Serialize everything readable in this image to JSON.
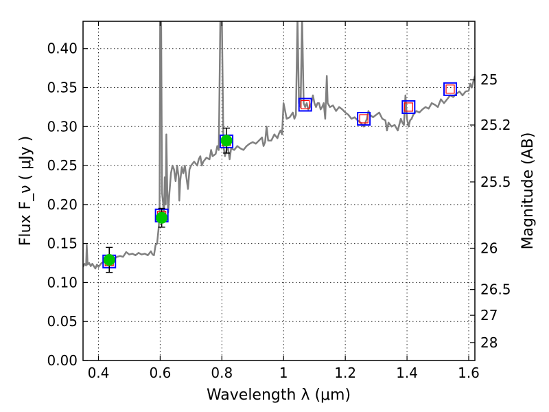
{
  "chart_data": {
    "type": "line",
    "title": "",
    "xlabel": "Wavelength  λ (μm)",
    "ylabel": "Flux  F_ν  ( μJy )",
    "ylabel_right": "Magnitude (AB)",
    "xlim": [
      0.35,
      1.62
    ],
    "ylim": [
      0.0,
      0.435
    ],
    "grid": true,
    "x_ticks": [
      0.4,
      0.6,
      0.8,
      1.0,
      1.2,
      1.4,
      1.6
    ],
    "x_tick_labels": [
      "0.4",
      "0.6",
      "0.8",
      "1",
      "1.2",
      "1.4",
      "1.6"
    ],
    "y_ticks": [
      0.0,
      0.05,
      0.1,
      0.15,
      0.2,
      0.25,
      0.3,
      0.35,
      0.4
    ],
    "y_tick_labels": [
      "0.00",
      "0.05",
      "0.10",
      "0.15",
      "0.20",
      "0.25",
      "0.30",
      "0.35",
      "0.40"
    ],
    "right_ticks": [
      {
        "label": "25",
        "flux": 0.36
      },
      {
        "label": "25.2",
        "flux": 0.302
      },
      {
        "label": "25.5",
        "flux": 0.229
      },
      {
        "label": "26",
        "flux": 0.144
      },
      {
        "label": "26.5",
        "flux": 0.091
      },
      {
        "label": "27",
        "flux": 0.058
      },
      {
        "label": "28",
        "flux": 0.023
      }
    ],
    "colors": {
      "spectrum": "#808080",
      "observed": "#00c800",
      "model_box": "#0000ff",
      "model_inner": "#ff0000",
      "errorbar": "#000000"
    },
    "series": [
      {
        "kind": "spectrum",
        "points": [
          [
            0.35,
            0.12
          ],
          [
            0.355,
            0.124
          ],
          [
            0.36,
            0.122
          ],
          [
            0.362,
            0.148
          ],
          [
            0.365,
            0.123
          ],
          [
            0.37,
            0.125
          ],
          [
            0.375,
            0.121
          ],
          [
            0.38,
            0.124
          ],
          [
            0.39,
            0.118
          ],
          [
            0.395,
            0.123
          ],
          [
            0.4,
            0.12
          ],
          [
            0.41,
            0.125
          ],
          [
            0.42,
            0.127
          ],
          [
            0.43,
            0.128
          ],
          [
            0.44,
            0.131
          ],
          [
            0.45,
            0.13
          ],
          [
            0.46,
            0.133
          ],
          [
            0.47,
            0.134
          ],
          [
            0.48,
            0.133
          ],
          [
            0.49,
            0.139
          ],
          [
            0.5,
            0.136
          ],
          [
            0.51,
            0.137
          ],
          [
            0.52,
            0.135
          ],
          [
            0.53,
            0.138
          ],
          [
            0.54,
            0.136
          ],
          [
            0.55,
            0.137
          ],
          [
            0.56,
            0.135
          ],
          [
            0.57,
            0.14
          ],
          [
            0.575,
            0.136
          ],
          [
            0.58,
            0.135
          ],
          [
            0.585,
            0.148
          ],
          [
            0.59,
            0.15
          ],
          [
            0.595,
            0.17
          ],
          [
            0.598,
            0.19
          ],
          [
            0.6,
            0.44
          ],
          [
            0.603,
            0.44
          ],
          [
            0.606,
            0.215
          ],
          [
            0.61,
            0.2
          ],
          [
            0.612,
            0.18
          ],
          [
            0.615,
            0.235
          ],
          [
            0.618,
            0.2
          ],
          [
            0.62,
            0.29
          ],
          [
            0.623,
            0.22
          ],
          [
            0.626,
            0.19
          ],
          [
            0.63,
            0.215
          ],
          [
            0.635,
            0.24
          ],
          [
            0.64,
            0.25
          ],
          [
            0.645,
            0.245
          ],
          [
            0.65,
            0.23
          ],
          [
            0.655,
            0.25
          ],
          [
            0.66,
            0.235
          ],
          [
            0.662,
            0.205
          ],
          [
            0.665,
            0.23
          ],
          [
            0.67,
            0.248
          ],
          [
            0.675,
            0.24
          ],
          [
            0.68,
            0.25
          ],
          [
            0.685,
            0.235
          ],
          [
            0.69,
            0.22
          ],
          [
            0.695,
            0.245
          ],
          [
            0.7,
            0.25
          ],
          [
            0.71,
            0.255
          ],
          [
            0.72,
            0.25
          ],
          [
            0.725,
            0.258
          ],
          [
            0.73,
            0.262
          ],
          [
            0.735,
            0.25
          ],
          [
            0.74,
            0.255
          ],
          [
            0.75,
            0.26
          ],
          [
            0.76,
            0.258
          ],
          [
            0.765,
            0.27
          ],
          [
            0.77,
            0.262
          ],
          [
            0.78,
            0.265
          ],
          [
            0.785,
            0.275
          ],
          [
            0.79,
            0.27
          ],
          [
            0.795,
            0.44
          ],
          [
            0.8,
            0.44
          ],
          [
            0.805,
            0.275
          ],
          [
            0.81,
            0.262
          ],
          [
            0.815,
            0.27
          ],
          [
            0.82,
            0.272
          ],
          [
            0.825,
            0.258
          ],
          [
            0.83,
            0.272
          ],
          [
            0.84,
            0.27
          ],
          [
            0.85,
            0.275
          ],
          [
            0.86,
            0.272
          ],
          [
            0.87,
            0.27
          ],
          [
            0.88,
            0.275
          ],
          [
            0.89,
            0.278
          ],
          [
            0.9,
            0.28
          ],
          [
            0.91,
            0.278
          ],
          [
            0.92,
            0.282
          ],
          [
            0.93,
            0.286
          ],
          [
            0.935,
            0.275
          ],
          [
            0.94,
            0.28
          ],
          [
            0.945,
            0.3
          ],
          [
            0.95,
            0.282
          ],
          [
            0.96,
            0.282
          ],
          [
            0.97,
            0.29
          ],
          [
            0.98,
            0.285
          ],
          [
            0.985,
            0.291
          ],
          [
            0.99,
            0.295
          ],
          [
            0.995,
            0.29
          ],
          [
            1.0,
            0.33
          ],
          [
            1.005,
            0.32
          ],
          [
            1.01,
            0.31
          ],
          [
            1.02,
            0.312
          ],
          [
            1.025,
            0.315
          ],
          [
            1.03,
            0.318
          ],
          [
            1.035,
            0.31
          ],
          [
            1.04,
            0.315
          ],
          [
            1.045,
            0.44
          ],
          [
            1.05,
            0.33
          ],
          [
            1.055,
            0.325
          ],
          [
            1.06,
            0.44
          ],
          [
            1.065,
            0.33
          ],
          [
            1.07,
            0.325
          ],
          [
            1.075,
            0.33
          ],
          [
            1.08,
            0.322
          ],
          [
            1.085,
            0.325
          ],
          [
            1.09,
            0.33
          ],
          [
            1.095,
            0.34
          ],
          [
            1.1,
            0.33
          ],
          [
            1.105,
            0.325
          ],
          [
            1.11,
            0.33
          ],
          [
            1.115,
            0.33
          ],
          [
            1.12,
            0.322
          ],
          [
            1.125,
            0.325
          ],
          [
            1.13,
            0.33
          ],
          [
            1.135,
            0.31
          ],
          [
            1.14,
            0.365
          ],
          [
            1.143,
            0.33
          ],
          [
            1.15,
            0.325
          ],
          [
            1.16,
            0.327
          ],
          [
            1.17,
            0.32
          ],
          [
            1.18,
            0.325
          ],
          [
            1.19,
            0.322
          ],
          [
            1.2,
            0.318
          ],
          [
            1.21,
            0.315
          ],
          [
            1.22,
            0.31
          ],
          [
            1.23,
            0.312
          ],
          [
            1.24,
            0.308
          ],
          [
            1.25,
            0.305
          ],
          [
            1.255,
            0.302
          ],
          [
            1.26,
            0.3
          ],
          [
            1.265,
            0.305
          ],
          [
            1.27,
            0.31
          ],
          [
            1.275,
            0.32
          ],
          [
            1.28,
            0.315
          ],
          [
            1.29,
            0.312
          ],
          [
            1.3,
            0.315
          ],
          [
            1.31,
            0.318
          ],
          [
            1.32,
            0.31
          ],
          [
            1.33,
            0.308
          ],
          [
            1.335,
            0.295
          ],
          [
            1.34,
            0.305
          ],
          [
            1.35,
            0.3
          ],
          [
            1.36,
            0.302
          ],
          [
            1.37,
            0.295
          ],
          [
            1.38,
            0.31
          ],
          [
            1.385,
            0.305
          ],
          [
            1.39,
            0.302
          ],
          [
            1.395,
            0.34
          ],
          [
            1.4,
            0.31
          ],
          [
            1.405,
            0.3
          ],
          [
            1.41,
            0.308
          ],
          [
            1.415,
            0.31
          ],
          [
            1.42,
            0.315
          ],
          [
            1.43,
            0.32
          ],
          [
            1.44,
            0.318
          ],
          [
            1.45,
            0.322
          ],
          [
            1.46,
            0.325
          ],
          [
            1.47,
            0.323
          ],
          [
            1.48,
            0.33
          ],
          [
            1.49,
            0.328
          ],
          [
            1.5,
            0.325
          ],
          [
            1.51,
            0.335
          ],
          [
            1.52,
            0.33
          ],
          [
            1.53,
            0.335
          ],
          [
            1.54,
            0.34
          ],
          [
            1.55,
            0.338
          ],
          [
            1.56,
            0.342
          ],
          [
            1.57,
            0.345
          ],
          [
            1.58,
            0.34
          ],
          [
            1.59,
            0.345
          ],
          [
            1.6,
            0.346
          ],
          [
            1.605,
            0.355
          ],
          [
            1.61,
            0.35
          ],
          [
            1.62,
            0.365
          ]
        ]
      },
      {
        "kind": "observed",
        "points": [
          {
            "x": 0.435,
            "y": 0.129,
            "err": 0.016
          },
          {
            "x": 0.605,
            "y": 0.183,
            "err": 0.012
          },
          {
            "x": 0.815,
            "y": 0.282,
            "err": 0.016
          }
        ]
      },
      {
        "kind": "model",
        "points": [
          {
            "x": 0.435,
            "y": 0.127
          },
          {
            "x": 0.605,
            "y": 0.186
          },
          {
            "x": 0.815,
            "y": 0.281
          },
          {
            "x": 1.07,
            "y": 0.328
          },
          {
            "x": 1.26,
            "y": 0.31
          },
          {
            "x": 1.405,
            "y": 0.325
          },
          {
            "x": 1.54,
            "y": 0.348
          }
        ]
      }
    ]
  }
}
